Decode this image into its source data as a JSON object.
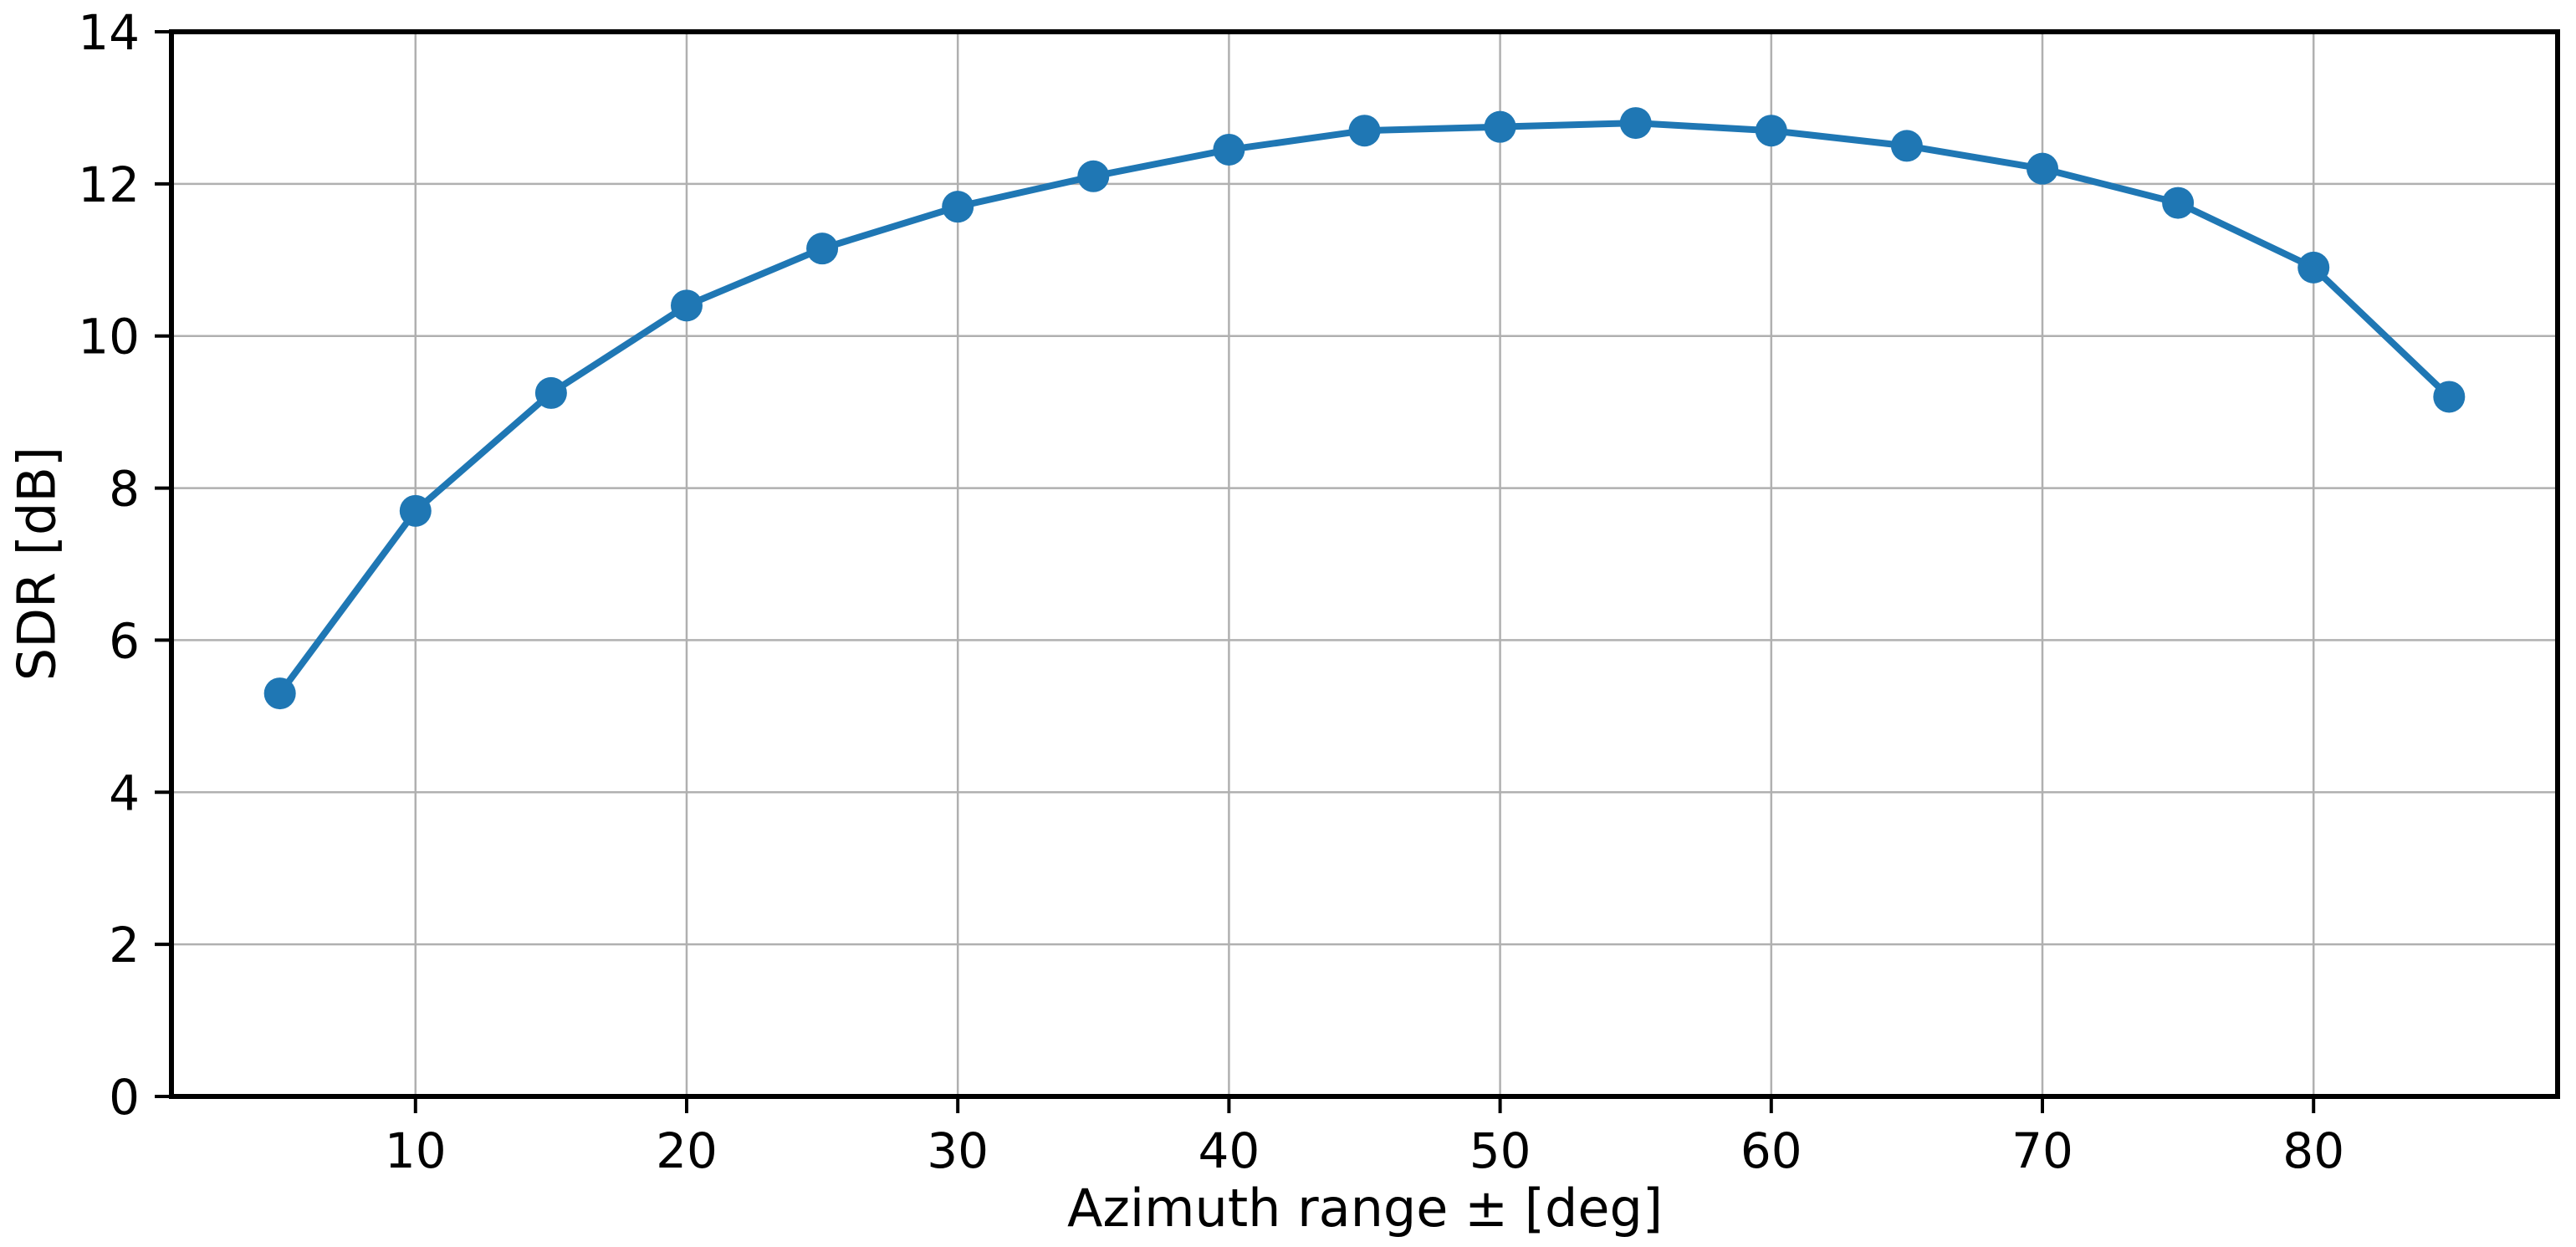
{
  "chart_data": {
    "type": "line",
    "title": "",
    "xlabel": "Azimuth range ± [deg]",
    "ylabel": "SDR [dB]",
    "x": [
      5,
      10,
      15,
      20,
      25,
      30,
      35,
      40,
      45,
      50,
      55,
      60,
      65,
      70,
      75,
      80,
      85
    ],
    "series": [
      {
        "name": "SDR",
        "values": [
          5.3,
          7.7,
          9.25,
          10.4,
          11.15,
          11.7,
          12.1,
          12.45,
          12.7,
          12.75,
          12.8,
          12.7,
          12.5,
          12.2,
          11.75,
          10.9,
          9.2
        ]
      }
    ],
    "xlim": [
      1,
      89
    ],
    "ylim": [
      0,
      14
    ],
    "xticks": [
      10,
      20,
      30,
      40,
      50,
      60,
      70,
      80
    ],
    "yticks": [
      0,
      2,
      4,
      6,
      8,
      10,
      12,
      14
    ],
    "grid": true,
    "legend": "none",
    "line_color": "#1f77b4",
    "marker": "circle",
    "marker_color": "#1f77b4",
    "grid_color": "#b0b0b0",
    "spine_color": "#000000",
    "tick_label_color": "#000000",
    "background": "#ffffff"
  }
}
